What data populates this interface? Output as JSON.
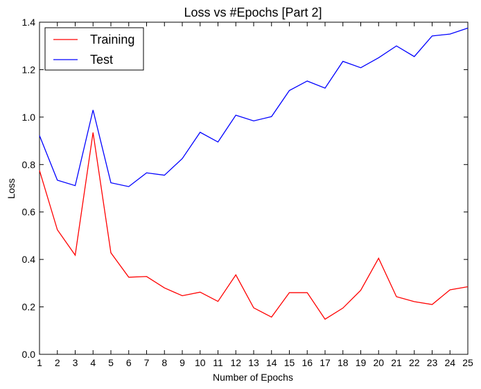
{
  "chart_data": {
    "type": "line",
    "title": "Loss vs #Epochs [Part 2]",
    "xlabel": "Number of Epochs",
    "ylabel": "Loss",
    "x": [
      1,
      2,
      3,
      4,
      5,
      6,
      7,
      8,
      9,
      10,
      11,
      12,
      13,
      14,
      15,
      16,
      17,
      18,
      19,
      20,
      21,
      22,
      23,
      24,
      25
    ],
    "xlim": [
      1,
      25
    ],
    "ylim": [
      0,
      1.4
    ],
    "xticks": [
      1,
      2,
      3,
      4,
      5,
      6,
      7,
      8,
      9,
      10,
      11,
      12,
      13,
      14,
      15,
      16,
      17,
      18,
      19,
      20,
      21,
      22,
      23,
      24,
      25
    ],
    "yticks": [
      0.0,
      0.2,
      0.4,
      0.6,
      0.8,
      1.0,
      1.2,
      1.4
    ],
    "ytick_labels": [
      "0.0",
      "0.2",
      "0.4",
      "0.6",
      "0.8",
      "1.0",
      "1.2",
      "1.4"
    ],
    "grid": false,
    "legend_position": "top-left",
    "series": [
      {
        "name": "Training",
        "color": "#ff0000",
        "values": [
          0.775,
          0.525,
          0.418,
          0.935,
          0.428,
          0.325,
          0.328,
          0.28,
          0.247,
          0.262,
          0.223,
          0.335,
          0.196,
          0.157,
          0.26,
          0.26,
          0.148,
          0.195,
          0.27,
          0.405,
          0.243,
          0.222,
          0.21,
          0.272,
          0.285
        ]
      },
      {
        "name": "Test",
        "color": "#0000ff",
        "values": [
          0.922,
          0.734,
          0.711,
          1.03,
          0.723,
          0.707,
          0.765,
          0.755,
          0.825,
          0.936,
          0.895,
          1.008,
          0.984,
          1.002,
          1.112,
          1.152,
          1.122,
          1.235,
          1.208,
          1.25,
          1.3,
          1.255,
          1.342,
          1.35,
          1.375
        ]
      }
    ]
  }
}
